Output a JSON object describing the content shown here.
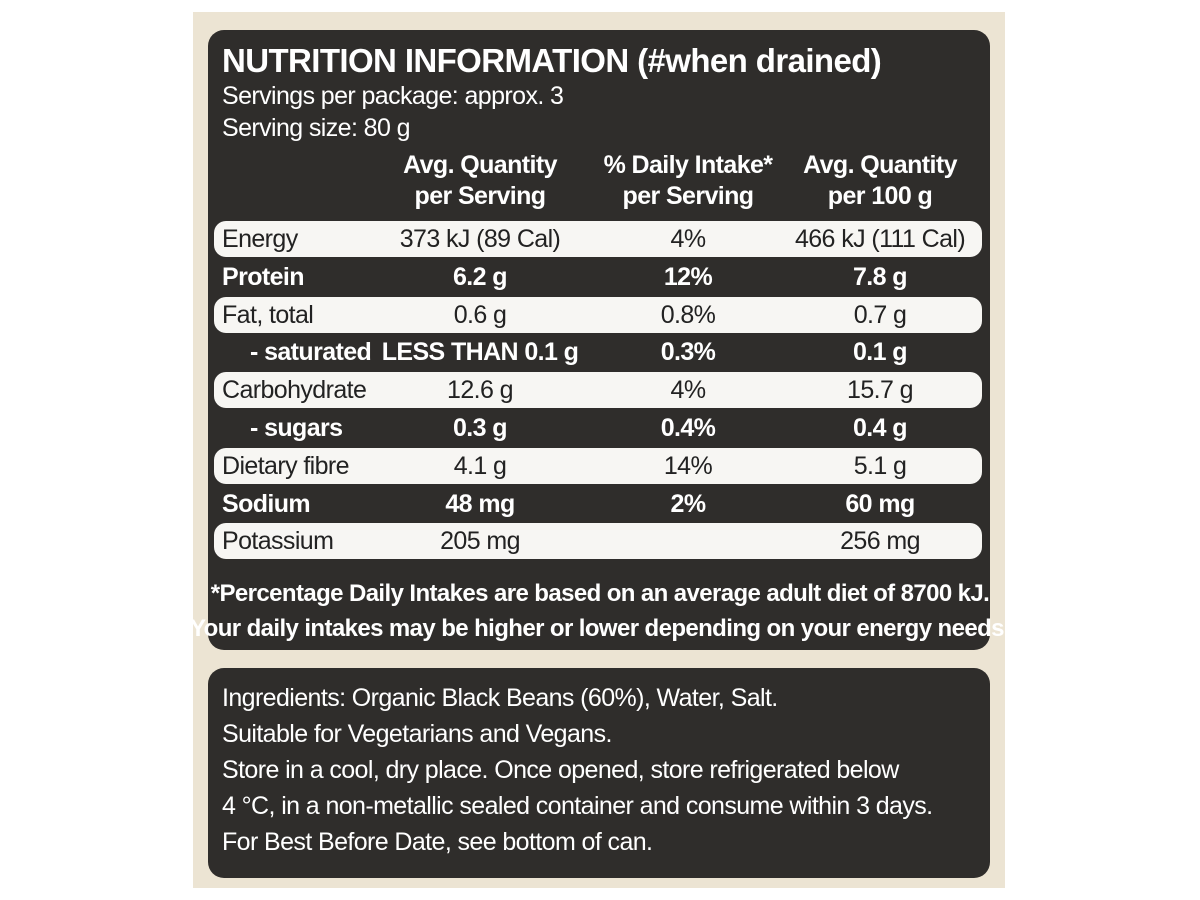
{
  "header": {
    "title": "NUTRITION INFORMATION (#when drained)",
    "servings": "Servings per package: approx. 3",
    "serving_size": "Serving size: 80 g"
  },
  "table": {
    "columns": [
      "Avg. Quantity\nper Serving",
      "% Daily Intake*\nper Serving",
      "Avg. Quantity\nper 100 g"
    ],
    "rows": [
      {
        "label": "Energy",
        "per_serving": "373 kJ (89 Cal)",
        "daily_intake": "4%",
        "per_100g": "466 kJ (111 Cal)"
      },
      {
        "label": "Protein",
        "per_serving": "6.2 g",
        "daily_intake": "12%",
        "per_100g": "7.8 g"
      },
      {
        "label": "Fat, total",
        "per_serving": "0.6 g",
        "daily_intake": "0.8%",
        "per_100g": "0.7 g"
      },
      {
        "label": "- saturated",
        "per_serving": "LESS THAN 0.1 g",
        "daily_intake": "0.3%",
        "per_100g": "0.1 g"
      },
      {
        "label": "Carbohydrate",
        "per_serving": "12.6 g",
        "daily_intake": "4%",
        "per_100g": "15.7 g"
      },
      {
        "label": "- sugars",
        "per_serving": "0.3 g",
        "daily_intake": "0.4%",
        "per_100g": "0.4 g"
      },
      {
        "label": "Dietary fibre",
        "per_serving": "4.1 g",
        "daily_intake": "14%",
        "per_100g": "5.1 g"
      },
      {
        "label": "Sodium",
        "per_serving": "48 mg",
        "daily_intake": "2%",
        "per_100g": "60 mg"
      },
      {
        "label": "Potassium",
        "per_serving": "205 mg",
        "per_100g": "256 mg"
      }
    ],
    "footnote": [
      "*Percentage Daily Intakes are based on an average adult diet of 8700 kJ.",
      "Your daily intakes may be higher or lower depending on your energy needs."
    ]
  },
  "info": [
    "Ingredients: Organic Black Beans (60%), Water, Salt.",
    "Suitable for Vegetarians and Vegans.",
    "Store in a cool, dry place. Once opened, store refrigerated below",
    "4 °C, in a non-metallic sealed container and consume within 3 days.",
    "For Best Before Date, see bottom of can."
  ]
}
